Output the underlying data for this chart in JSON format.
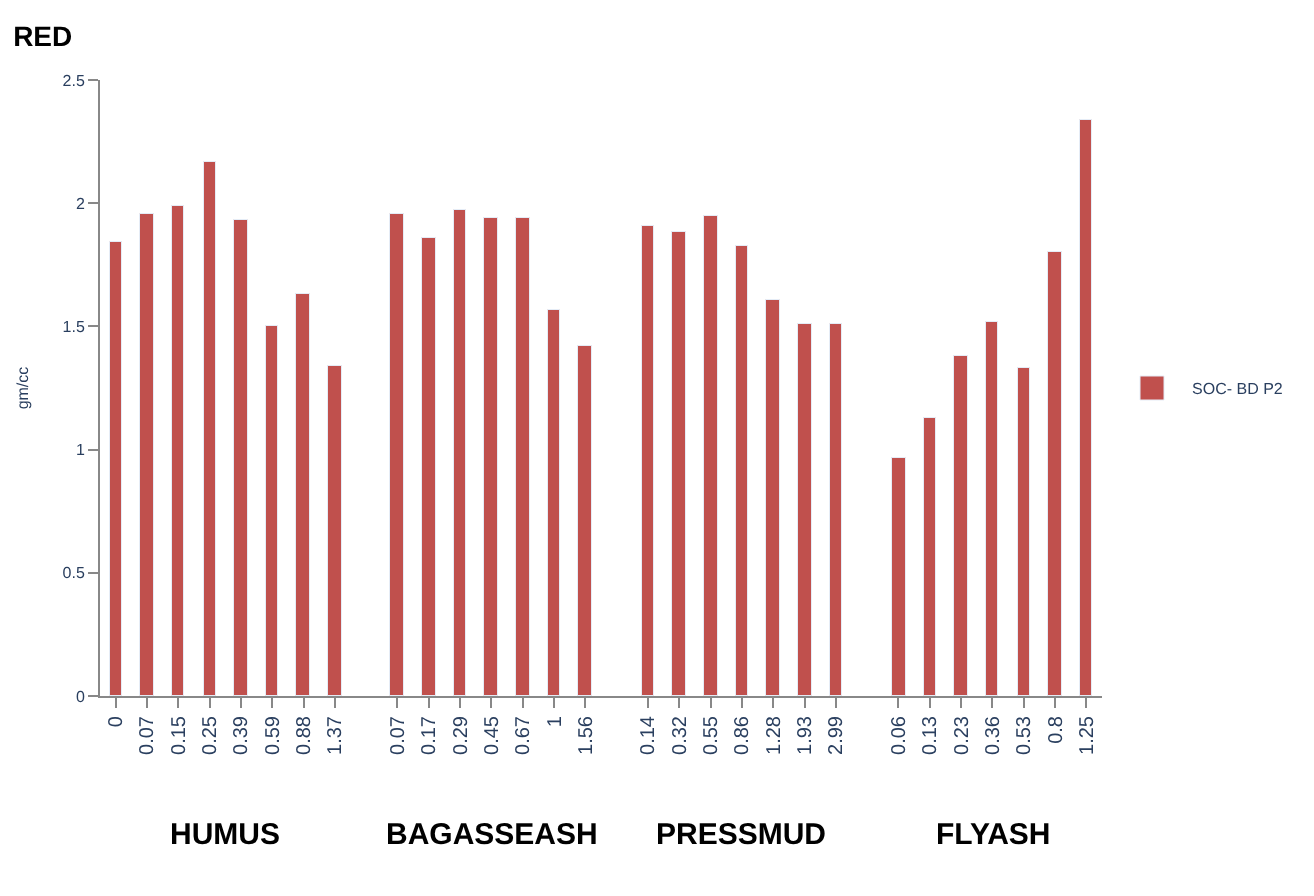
{
  "chart_data": {
    "type": "bar",
    "title": "RED",
    "ylabel": "gm/cc",
    "categories": [
      "0",
      "0.07",
      "0.15",
      "0.25",
      "0.39",
      "0.59",
      "0.88",
      "1.37",
      null,
      "0.07",
      "0.17",
      "0.29",
      "0.45",
      "0.67",
      "1",
      "1.56",
      null,
      "0.14",
      "0.32",
      "0.55",
      "0.86",
      "1.28",
      "1.93",
      "2.99",
      null,
      "0.06",
      "0.13",
      "0.23",
      "0.36",
      "0.53",
      "0.8",
      "1.25"
    ],
    "series": [
      {
        "name": "SOC- BD P2",
        "color": "#c0504d",
        "values": [
          1.84,
          1.96,
          1.99,
          2.17,
          1.93,
          1.5,
          1.63,
          1.34,
          null,
          1.96,
          1.86,
          1.97,
          1.94,
          1.94,
          1.57,
          1.42,
          null,
          1.91,
          1.88,
          1.95,
          1.83,
          1.61,
          1.51,
          1.51,
          null,
          0.97,
          1.13,
          1.38,
          1.52,
          1.33,
          1.8,
          2.34
        ]
      }
    ],
    "annotations": [
      "HUMUS",
      "BAGASSEASH",
      "PRESSMUD",
      "FLYASH"
    ],
    "ylim": [
      0,
      2.5
    ],
    "yticks": [
      0,
      0.5,
      1,
      1.5,
      2,
      2.5
    ],
    "legend": "right"
  }
}
